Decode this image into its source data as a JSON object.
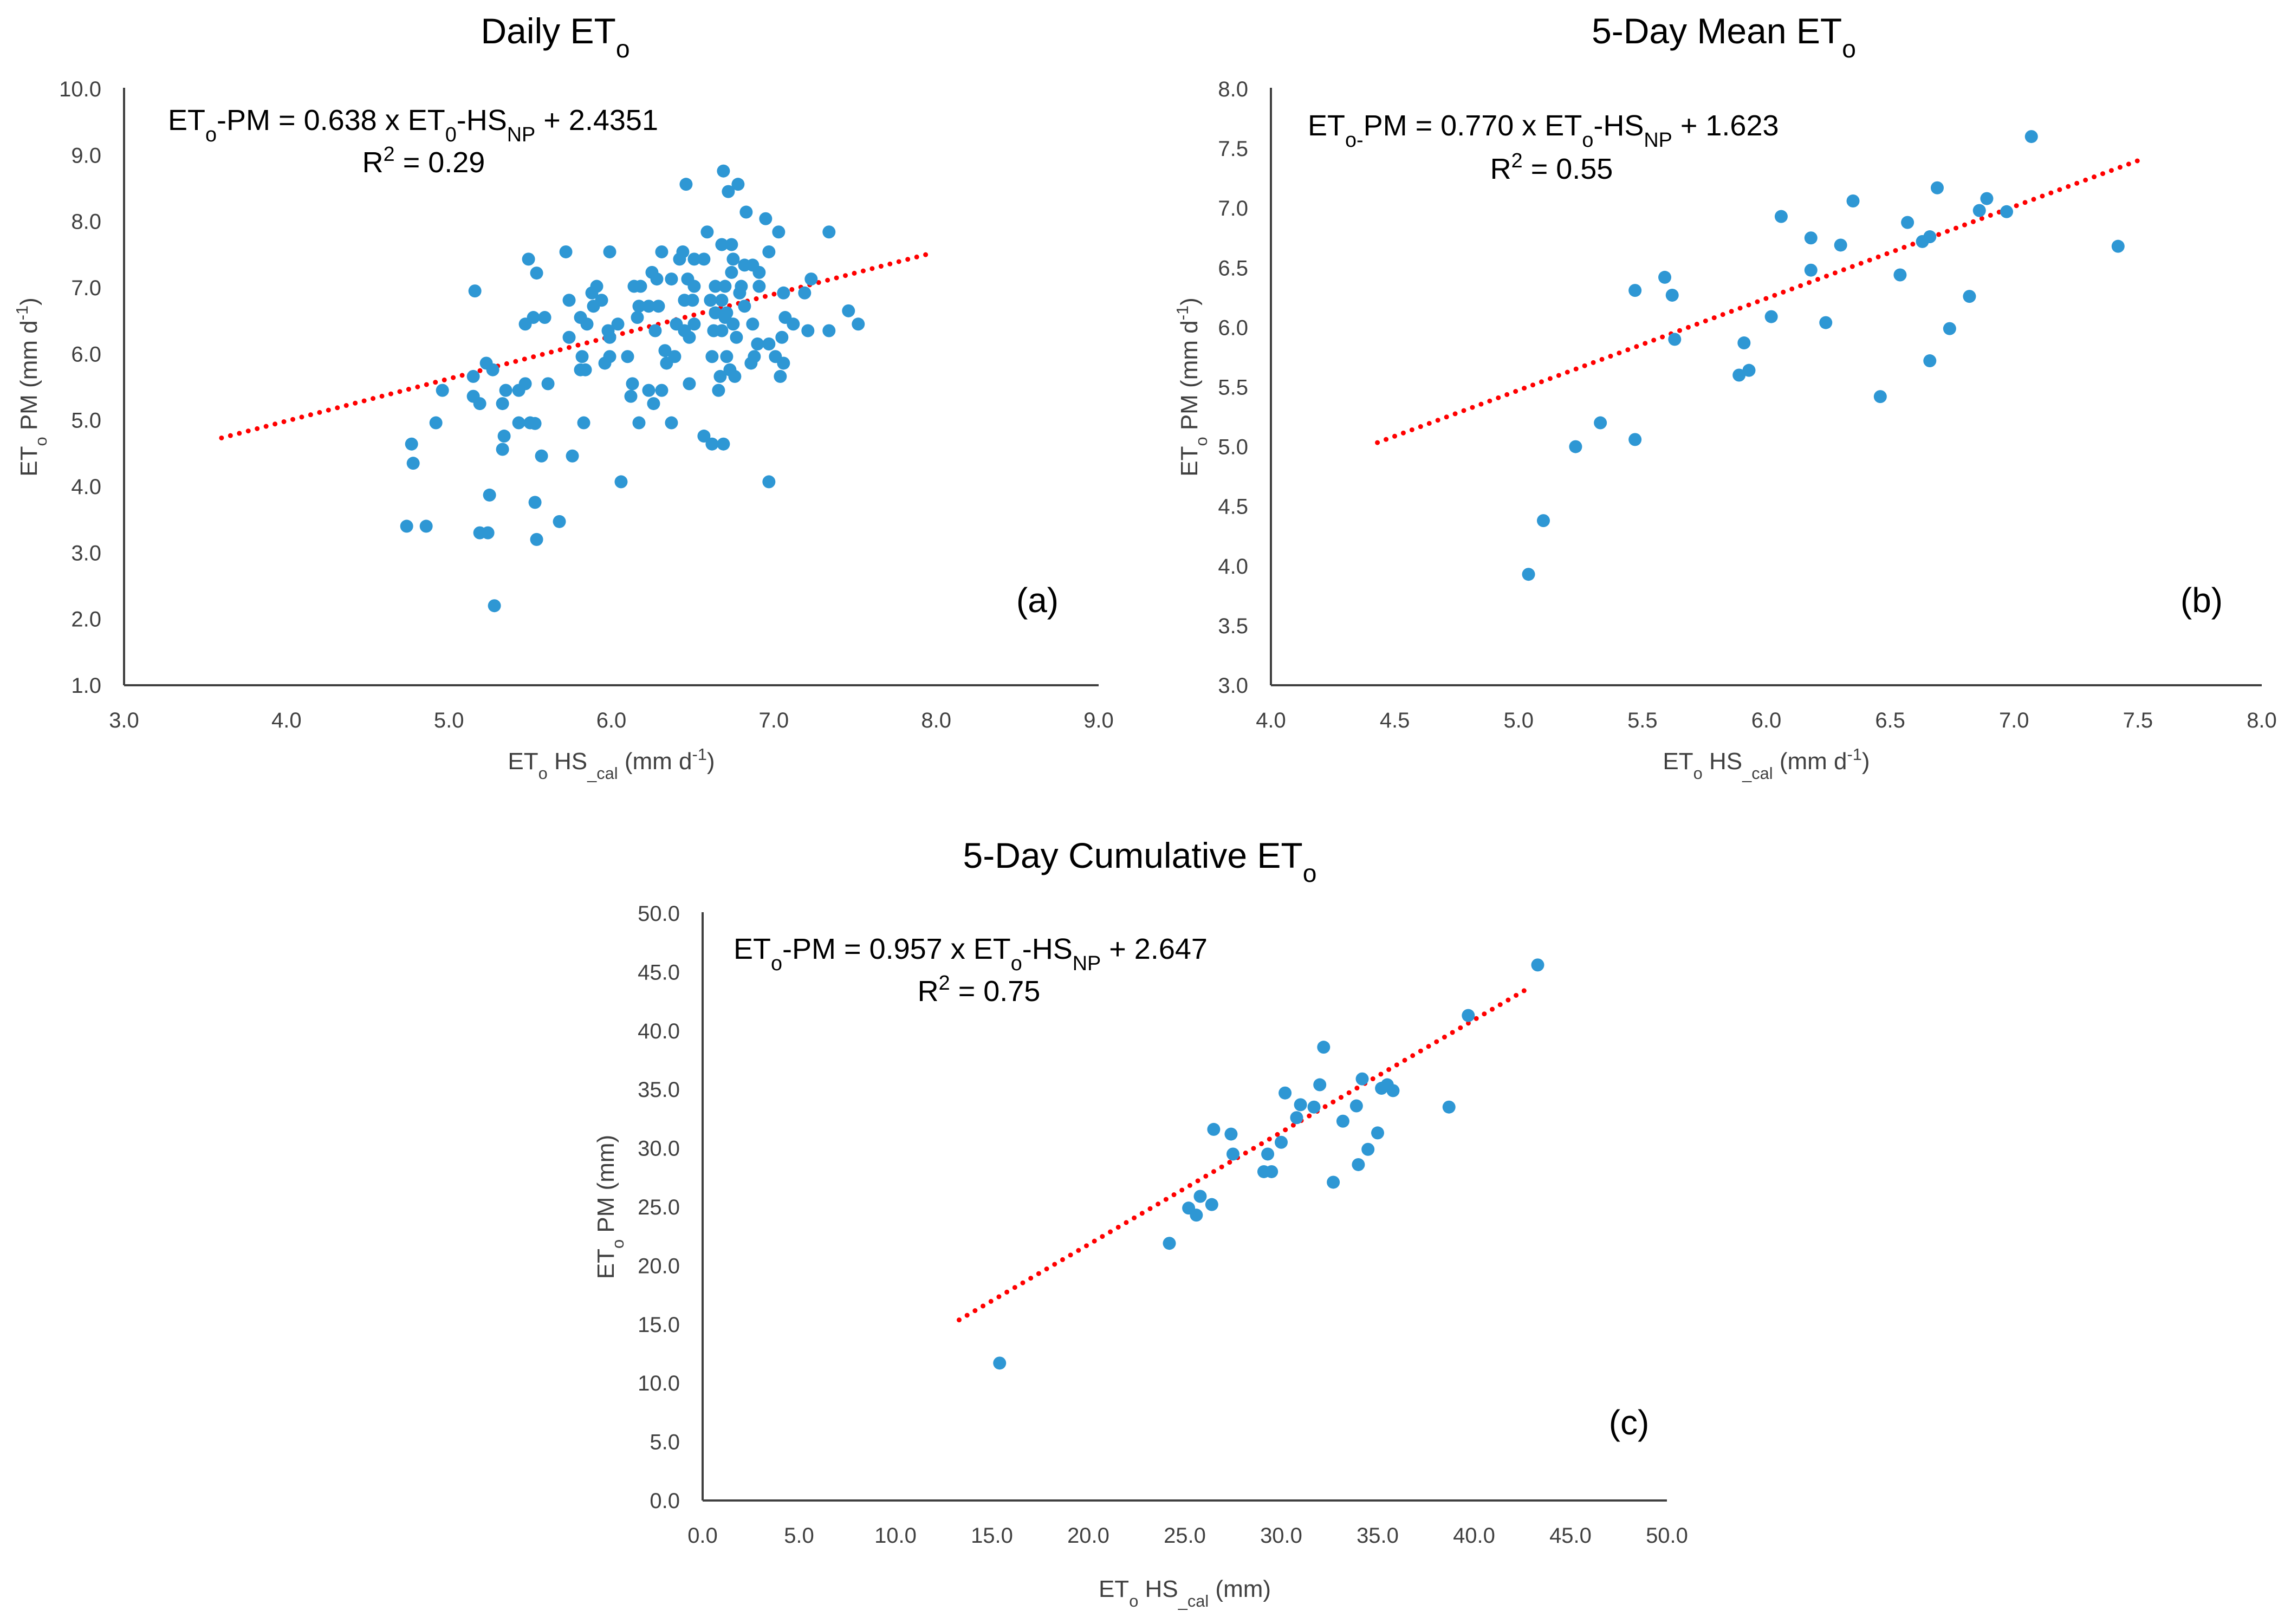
{
  "colors": {
    "points": "#2E97D4",
    "trendline": "#FF0000",
    "axis": "#404040"
  },
  "chart_data": [
    {
      "type": "scatter",
      "id": "a",
      "title": [
        {
          "t": "Daily ET"
        },
        {
          "t": "o",
          "sub": true
        }
      ],
      "panel_label": "(a)",
      "equation": [
        {
          "t": "ET"
        },
        {
          "t": "o",
          "sub": true
        },
        {
          "t": "-PM = 0.638 x ET"
        },
        {
          "t": "0",
          "sub": true
        },
        {
          "t": "-HS"
        },
        {
          "t": "NP",
          "sub": true
        },
        {
          "t": " + 2.4351"
        }
      ],
      "r2": [
        {
          "t": "R"
        },
        {
          "t": "2",
          "sup": true
        },
        {
          "t": " = 0.29"
        }
      ],
      "xlabel": [
        {
          "t": "ET"
        },
        {
          "t": "o",
          "sub": true
        },
        {
          "t": " HS"
        },
        {
          "t": "_cal",
          "sub": true
        },
        {
          "t": " (mm d"
        },
        {
          "t": "-1",
          "sup": true
        },
        {
          "t": ")"
        }
      ],
      "ylabel": [
        {
          "t": "ET"
        },
        {
          "t": "o",
          "sub": true
        },
        {
          "t": " PM (mm d"
        },
        {
          "t": "-1",
          "sup": true
        },
        {
          "t": ")"
        }
      ],
      "xlim": [
        3,
        9
      ],
      "ylim": [
        1,
        10
      ],
      "xticks": [
        "3.0",
        "4.0",
        "5.0",
        "6.0",
        "7.0",
        "8.0",
        "9.0"
      ],
      "yticks": [
        "1.0",
        "2.0",
        "3.0",
        "4.0",
        "5.0",
        "6.0",
        "7.0",
        "8.0",
        "9.0",
        "10.0"
      ],
      "trendline": {
        "slope": 0.638,
        "intercept": 2.4351,
        "x_range": [
          3.6,
          7.95
        ]
      },
      "points": [
        [
          6.69,
          8.76
        ],
        [
          6.46,
          8.56
        ],
        [
          6.78,
          8.56
        ],
        [
          6.72,
          8.45
        ],
        [
          6.83,
          8.14
        ],
        [
          6.95,
          8.04
        ],
        [
          6.59,
          7.84
        ],
        [
          7.03,
          7.84
        ],
        [
          7.34,
          7.84
        ],
        [
          6.68,
          7.65
        ],
        [
          6.74,
          7.65
        ],
        [
          5.49,
          7.43
        ],
        [
          5.72,
          7.54
        ],
        [
          5.99,
          7.54
        ],
        [
          6.31,
          7.54
        ],
        [
          6.44,
          7.54
        ],
        [
          6.42,
          7.43
        ],
        [
          6.51,
          7.43
        ],
        [
          6.57,
          7.43
        ],
        [
          6.97,
          7.54
        ],
        [
          6.75,
          7.43
        ],
        [
          6.82,
          7.34
        ],
        [
          6.87,
          7.34
        ],
        [
          6.74,
          7.23
        ],
        [
          6.91,
          7.23
        ],
        [
          5.54,
          7.22
        ],
        [
          6.25,
          7.23
        ],
        [
          6.28,
          7.13
        ],
        [
          6.37,
          7.13
        ],
        [
          6.47,
          7.13
        ],
        [
          7.23,
          7.13
        ],
        [
          5.16,
          6.95
        ],
        [
          5.91,
          7.02
        ],
        [
          5.88,
          6.92
        ],
        [
          6.14,
          7.02
        ],
        [
          6.18,
          7.02
        ],
        [
          6.51,
          7.02
        ],
        [
          6.64,
          7.02
        ],
        [
          6.7,
          7.02
        ],
        [
          6.8,
          7.02
        ],
        [
          6.91,
          7.02
        ],
        [
          7.06,
          6.92
        ],
        [
          7.19,
          6.92
        ],
        [
          5.74,
          6.81
        ],
        [
          5.94,
          6.81
        ],
        [
          6.45,
          6.81
        ],
        [
          6.5,
          6.81
        ],
        [
          6.61,
          6.81
        ],
        [
          6.68,
          6.81
        ],
        [
          6.79,
          6.92
        ],
        [
          5.89,
          6.72
        ],
        [
          6.17,
          6.72
        ],
        [
          6.23,
          6.72
        ],
        [
          6.29,
          6.72
        ],
        [
          6.82,
          6.72
        ],
        [
          7.46,
          6.65
        ],
        [
          6.71,
          6.62
        ],
        [
          5.52,
          6.55
        ],
        [
          5.59,
          6.55
        ],
        [
          5.47,
          6.45
        ],
        [
          5.81,
          6.55
        ],
        [
          5.85,
          6.45
        ],
        [
          6.16,
          6.55
        ],
        [
          6.04,
          6.45
        ],
        [
          6.64,
          6.62
        ],
        [
          6.7,
          6.55
        ],
        [
          7.07,
          6.55
        ],
        [
          7.12,
          6.45
        ],
        [
          7.52,
          6.45
        ],
        [
          6.4,
          6.45
        ],
        [
          6.51,
          6.45
        ],
        [
          6.75,
          6.45
        ],
        [
          6.87,
          6.45
        ],
        [
          5.98,
          6.35
        ],
        [
          6.27,
          6.35
        ],
        [
          6.45,
          6.35
        ],
        [
          6.63,
          6.35
        ],
        [
          6.68,
          6.35
        ],
        [
          7.21,
          6.35
        ],
        [
          7.34,
          6.35
        ],
        [
          5.74,
          6.25
        ],
        [
          5.99,
          6.25
        ],
        [
          6.48,
          6.25
        ],
        [
          6.77,
          6.25
        ],
        [
          7.05,
          6.25
        ],
        [
          6.9,
          6.15
        ],
        [
          6.97,
          6.15
        ],
        [
          6.33,
          6.05
        ],
        [
          5.82,
          5.96
        ],
        [
          5.99,
          5.96
        ],
        [
          6.1,
          5.96
        ],
        [
          6.39,
          5.96
        ],
        [
          6.62,
          5.96
        ],
        [
          6.71,
          5.96
        ],
        [
          6.88,
          5.96
        ],
        [
          7.01,
          5.96
        ],
        [
          5.23,
          5.86
        ],
        [
          5.96,
          5.86
        ],
        [
          6.34,
          5.86
        ],
        [
          6.86,
          5.86
        ],
        [
          7.06,
          5.86
        ],
        [
          5.27,
          5.76
        ],
        [
          5.81,
          5.76
        ],
        [
          5.84,
          5.76
        ],
        [
          6.73,
          5.76
        ],
        [
          5.15,
          5.66
        ],
        [
          6.67,
          5.66
        ],
        [
          6.76,
          5.66
        ],
        [
          7.04,
          5.66
        ],
        [
          4.96,
          5.45
        ],
        [
          5.35,
          5.45
        ],
        [
          5.43,
          5.45
        ],
        [
          5.47,
          5.55
        ],
        [
          5.61,
          5.55
        ],
        [
          6.13,
          5.55
        ],
        [
          6.48,
          5.55
        ],
        [
          6.23,
          5.45
        ],
        [
          6.31,
          5.45
        ],
        [
          6.66,
          5.45
        ],
        [
          5.15,
          5.36
        ],
        [
          5.19,
          5.25
        ],
        [
          5.33,
          5.25
        ],
        [
          6.12,
          5.36
        ],
        [
          6.26,
          5.25
        ],
        [
          4.92,
          4.96
        ],
        [
          5.43,
          4.96
        ],
        [
          5.5,
          4.96
        ],
        [
          5.53,
          4.95
        ],
        [
          5.83,
          4.96
        ],
        [
          6.17,
          4.96
        ],
        [
          6.37,
          4.96
        ],
        [
          5.34,
          4.76
        ],
        [
          6.57,
          4.76
        ],
        [
          6.62,
          4.64
        ],
        [
          6.69,
          4.64
        ],
        [
          4.77,
          4.64
        ],
        [
          4.78,
          4.35
        ],
        [
          5.33,
          4.56
        ],
        [
          5.57,
          4.46
        ],
        [
          5.76,
          4.46
        ],
        [
          6.06,
          4.07
        ],
        [
          6.97,
          4.07
        ],
        [
          5.25,
          3.87
        ],
        [
          5.53,
          3.76
        ],
        [
          5.68,
          3.47
        ],
        [
          4.74,
          3.4
        ],
        [
          4.86,
          3.4
        ],
        [
          5.19,
          3.3
        ],
        [
          5.24,
          3.3
        ],
        [
          5.54,
          3.2
        ],
        [
          5.28,
          2.2
        ]
      ]
    },
    {
      "type": "scatter",
      "id": "b",
      "title": [
        {
          "t": "5-Day Mean ET"
        },
        {
          "t": "o",
          "sub": true
        }
      ],
      "panel_label": "(b)",
      "equation": [
        {
          "t": "ET"
        },
        {
          "t": "o-",
          "sub": true
        },
        {
          "t": "PM = 0.770 x ET"
        },
        {
          "t": "o",
          "sub": true
        },
        {
          "t": "-HS"
        },
        {
          "t": "NP",
          "sub": true
        },
        {
          "t": " + 1.623"
        }
      ],
      "r2": [
        {
          "t": "R"
        },
        {
          "t": "2",
          "sup": true
        },
        {
          "t": " = 0.55"
        }
      ],
      "xlabel": [
        {
          "t": "ET"
        },
        {
          "t": "o",
          "sub": true
        },
        {
          "t": " HS"
        },
        {
          "t": "_cal",
          "sub": true
        },
        {
          "t": " (mm d"
        },
        {
          "t": "-1",
          "sup": true
        },
        {
          "t": ")"
        }
      ],
      "ylabel": [
        {
          "t": "ET"
        },
        {
          "t": "o",
          "sub": true
        },
        {
          "t": " PM (mm d"
        },
        {
          "t": "-1",
          "sup": true
        },
        {
          "t": ")"
        }
      ],
      "xlim": [
        4,
        8
      ],
      "ylim": [
        3,
        8
      ],
      "xticks": [
        "4.0",
        "4.5",
        "5.0",
        "5.5",
        "6.0",
        "6.5",
        "7.0",
        "7.5",
        "8.0"
      ],
      "yticks": [
        "3.0",
        "3.5",
        "4.0",
        "4.5",
        "5.0",
        "5.5",
        "6.0",
        "6.5",
        "7.0",
        "7.5",
        "8.0"
      ],
      "trendline": {
        "slope": 0.77,
        "intercept": 1.623,
        "x_range": [
          4.43,
          7.5
        ]
      },
      "points": [
        [
          5.04,
          3.93
        ],
        [
          5.1,
          4.38
        ],
        [
          5.23,
          5.0
        ],
        [
          5.33,
          5.2
        ],
        [
          5.47,
          5.06
        ],
        [
          5.47,
          6.31
        ],
        [
          5.59,
          6.42
        ],
        [
          5.62,
          6.27
        ],
        [
          5.63,
          5.9
        ],
        [
          5.89,
          5.6
        ],
        [
          5.93,
          5.64
        ],
        [
          5.91,
          5.87
        ],
        [
          6.02,
          6.09
        ],
        [
          6.06,
          6.93
        ],
        [
          6.18,
          6.75
        ],
        [
          6.18,
          6.48
        ],
        [
          6.24,
          6.04
        ],
        [
          6.3,
          6.69
        ],
        [
          6.35,
          7.06
        ],
        [
          6.46,
          5.42
        ],
        [
          6.54,
          6.44
        ],
        [
          6.57,
          6.88
        ],
        [
          6.63,
          6.72
        ],
        [
          6.66,
          6.76
        ],
        [
          6.66,
          5.72
        ],
        [
          6.69,
          7.17
        ],
        [
          6.74,
          5.99
        ],
        [
          6.82,
          6.26
        ],
        [
          6.86,
          6.98
        ],
        [
          6.89,
          7.08
        ],
        [
          6.97,
          6.97
        ],
        [
          7.07,
          7.6
        ],
        [
          7.42,
          6.68
        ]
      ]
    },
    {
      "type": "scatter",
      "id": "c",
      "title": [
        {
          "t": "5-Day Cumulative ET"
        },
        {
          "t": "o",
          "sub": true
        }
      ],
      "panel_label": "(c)",
      "equation": [
        {
          "t": "ET"
        },
        {
          "t": "o",
          "sub": true
        },
        {
          "t": "-PM = 0.957 x ET"
        },
        {
          "t": "o",
          "sub": true
        },
        {
          "t": "-HS"
        },
        {
          "t": "NP",
          "sub": true
        },
        {
          "t": " + 2.647"
        }
      ],
      "r2": [
        {
          "t": "R"
        },
        {
          "t": "2",
          "sup": true
        },
        {
          "t": " = 0.75"
        }
      ],
      "xlabel": [
        {
          "t": "ET"
        },
        {
          "t": "o",
          "sub": true
        },
        {
          "t": " HS"
        },
        {
          "t": "_cal",
          "sub": true
        },
        {
          "t": " (mm)"
        }
      ],
      "ylabel": [
        {
          "t": "ET"
        },
        {
          "t": "o",
          "sub": true
        },
        {
          "t": " PM (mm)"
        }
      ],
      "xlim": [
        0,
        50
      ],
      "ylim": [
        0,
        50
      ],
      "xticks": [
        "0.0",
        "5.0",
        "10.0",
        "15.0",
        "20.0",
        "25.0",
        "30.0",
        "35.0",
        "40.0",
        "45.0",
        "50.0"
      ],
      "yticks": [
        "0.0",
        "5.0",
        "10.0",
        "15.0",
        "20.0",
        "25.0",
        "30.0",
        "35.0",
        "40.0",
        "45.0",
        "50.0"
      ],
      "trendline": {
        "slope": 0.957,
        "intercept": 2.647,
        "x_range": [
          13.3,
          43.0
        ]
      },
      "points": [
        [
          15.4,
          11.7
        ],
        [
          24.2,
          21.9
        ],
        [
          25.2,
          24.9
        ],
        [
          25.6,
          24.3
        ],
        [
          25.8,
          25.9
        ],
        [
          26.4,
          25.2
        ],
        [
          26.5,
          31.6
        ],
        [
          27.4,
          31.2
        ],
        [
          27.5,
          29.5
        ],
        [
          29.1,
          28.0
        ],
        [
          29.5,
          28.0
        ],
        [
          29.3,
          29.5
        ],
        [
          30.0,
          30.5
        ],
        [
          30.2,
          34.7
        ],
        [
          30.8,
          32.6
        ],
        [
          31.0,
          33.7
        ],
        [
          31.7,
          33.5
        ],
        [
          32.0,
          35.4
        ],
        [
          32.2,
          38.6
        ],
        [
          32.7,
          27.1
        ],
        [
          33.2,
          32.3
        ],
        [
          33.9,
          33.6
        ],
        [
          34.0,
          28.6
        ],
        [
          34.2,
          35.9
        ],
        [
          34.5,
          29.9
        ],
        [
          35.0,
          31.3
        ],
        [
          35.2,
          35.1
        ],
        [
          35.5,
          35.4
        ],
        [
          35.8,
          34.9
        ],
        [
          38.7,
          33.5
        ],
        [
          39.7,
          41.3
        ],
        [
          43.3,
          45.6
        ]
      ]
    }
  ]
}
